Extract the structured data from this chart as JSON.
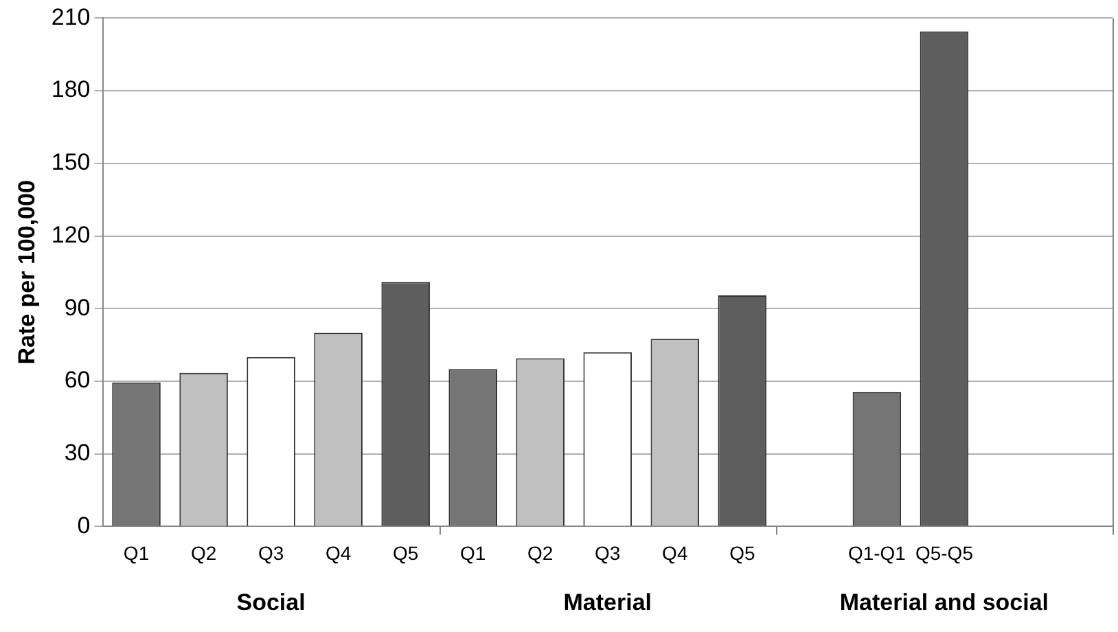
{
  "chart_data": {
    "type": "bar",
    "ylabel": "Rate per 100,000",
    "categories": [
      "Q1",
      "Q2",
      "Q3",
      "Q4",
      "Q5",
      "Q1",
      "Q2",
      "Q3",
      "Q4",
      "Q5",
      null,
      "Q1-Q1",
      "Q5-Q5",
      null,
      null
    ],
    "values": [
      59.5,
      63.5,
      70,
      80,
      101,
      65,
      69.5,
      72,
      77.5,
      95.5,
      null,
      55.5,
      204.5,
      null,
      null
    ],
    "colors": [
      "#757575",
      "#c0c0c0",
      "#ffffff",
      "#c0c0c0",
      "#5e5e5e",
      "#757575",
      "#c0c0c0",
      "#ffffff",
      "#c0c0c0",
      "#5e5e5e",
      "#757575",
      "#757575",
      "#5e5e5e",
      "#757575",
      "#757575"
    ],
    "ylim": [
      0,
      210
    ],
    "yticks": [
      0,
      30,
      60,
      90,
      120,
      150,
      180,
      210
    ],
    "grid": "y",
    "legend": false,
    "annotations": [
      "Social",
      "Material",
      "Material and social"
    ]
  }
}
